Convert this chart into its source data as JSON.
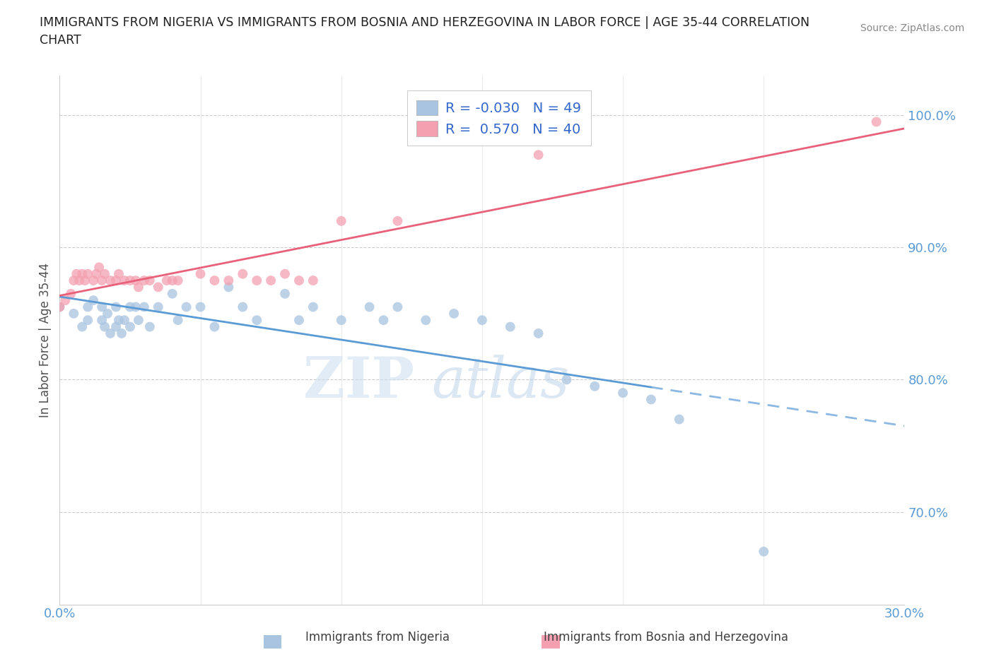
{
  "title_line1": "IMMIGRANTS FROM NIGERIA VS IMMIGRANTS FROM BOSNIA AND HERZEGOVINA IN LABOR FORCE | AGE 35-44 CORRELATION",
  "title_line2": "CHART",
  "source_text": "Source: ZipAtlas.com",
  "ylabel": "In Labor Force | Age 35-44",
  "xlim": [
    0.0,
    0.3
  ],
  "ylim": [
    0.63,
    1.03
  ],
  "xtick_positions": [
    0.0,
    0.05,
    0.1,
    0.15,
    0.2,
    0.25,
    0.3
  ],
  "xticklabels": [
    "0.0%",
    "",
    "",
    "",
    "",
    "",
    "30.0%"
  ],
  "ytick_positions": [
    0.7,
    0.8,
    0.9,
    1.0
  ],
  "yticklabels": [
    "70.0%",
    "80.0%",
    "90.0%",
    "100.0%"
  ],
  "grid_yticks": [
    0.7,
    0.8,
    0.9,
    1.0
  ],
  "nigeria_color": "#a8c4e0",
  "bosnia_color": "#f4a0b0",
  "nigeria_line_color": "#5b9bd5",
  "bosnia_line_color": "#e8607a",
  "nigeria_R": -0.03,
  "nigeria_N": 49,
  "bosnia_R": 0.57,
  "bosnia_N": 40,
  "legend_nigeria_label": "Immigrants from Nigeria",
  "legend_bosnia_label": "Immigrants from Bosnia and Herzegovina",
  "watermark_zip": "ZIP",
  "watermark_atlas": "atlas",
  "nigeria_x": [
    0.0,
    0.005,
    0.008,
    0.01,
    0.01,
    0.012,
    0.015,
    0.015,
    0.016,
    0.017,
    0.018,
    0.02,
    0.02,
    0.021,
    0.022,
    0.023,
    0.025,
    0.025,
    0.027,
    0.028,
    0.03,
    0.032,
    0.035,
    0.04,
    0.042,
    0.045,
    0.05,
    0.055,
    0.06,
    0.065,
    0.07,
    0.08,
    0.085,
    0.09,
    0.1,
    0.11,
    0.115,
    0.12,
    0.13,
    0.14,
    0.15,
    0.16,
    0.17,
    0.18,
    0.19,
    0.2,
    0.21,
    0.22,
    0.25
  ],
  "nigeria_y": [
    0.855,
    0.85,
    0.84,
    0.855,
    0.845,
    0.86,
    0.855,
    0.845,
    0.84,
    0.85,
    0.835,
    0.855,
    0.84,
    0.845,
    0.835,
    0.845,
    0.855,
    0.84,
    0.855,
    0.845,
    0.855,
    0.84,
    0.855,
    0.865,
    0.845,
    0.855,
    0.855,
    0.84,
    0.87,
    0.855,
    0.845,
    0.865,
    0.845,
    0.855,
    0.845,
    0.855,
    0.845,
    0.855,
    0.845,
    0.85,
    0.845,
    0.84,
    0.835,
    0.8,
    0.795,
    0.79,
    0.785,
    0.77,
    0.67
  ],
  "bosnia_x": [
    0.0,
    0.002,
    0.004,
    0.005,
    0.006,
    0.007,
    0.008,
    0.009,
    0.01,
    0.012,
    0.013,
    0.014,
    0.015,
    0.016,
    0.018,
    0.02,
    0.021,
    0.023,
    0.025,
    0.027,
    0.028,
    0.03,
    0.032,
    0.035,
    0.038,
    0.04,
    0.042,
    0.05,
    0.055,
    0.06,
    0.065,
    0.07,
    0.075,
    0.08,
    0.085,
    0.09,
    0.1,
    0.12,
    0.17,
    0.29
  ],
  "bosnia_y": [
    0.855,
    0.86,
    0.865,
    0.875,
    0.88,
    0.875,
    0.88,
    0.875,
    0.88,
    0.875,
    0.88,
    0.885,
    0.875,
    0.88,
    0.875,
    0.875,
    0.88,
    0.875,
    0.875,
    0.875,
    0.87,
    0.875,
    0.875,
    0.87,
    0.875,
    0.875,
    0.875,
    0.88,
    0.875,
    0.875,
    0.88,
    0.875,
    0.875,
    0.88,
    0.875,
    0.875,
    0.92,
    0.92,
    0.97,
    0.995
  ]
}
